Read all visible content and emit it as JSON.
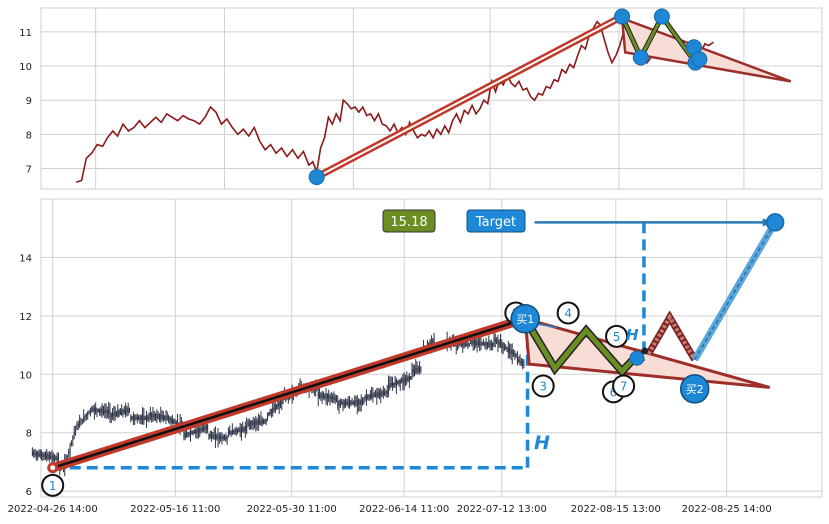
{
  "colors": {
    "price_line": "#8b1a1a",
    "candle": "#2d3447",
    "trend": "#c0392b",
    "wave_fill": "#f8dcd6",
    "wave_stroke": "#9c2f2a",
    "zigzag": "#6b8e23",
    "marker": "#1e88d6",
    "projection": "#5aa7dd",
    "dashed": "#1e88d6",
    "grid": "#d0d0d0",
    "price_box": "#6b8e23",
    "target_box": "#1e88d6"
  },
  "annotations": {
    "price_box": "15.18",
    "target_label": "Target",
    "height_label": "H",
    "height_label_small": "H",
    "buy1": "买1",
    "buy2": "买2",
    "points": [
      {
        "label": "1",
        "x": 1.5,
        "y": 6.2
      },
      {
        "label": "2",
        "x": 60.8,
        "y": 12.1
      },
      {
        "label": "3",
        "x": 64.3,
        "y": 9.6
      },
      {
        "label": "4",
        "x": 67.5,
        "y": 12.1
      },
      {
        "label": "5",
        "x": 73.7,
        "y": 11.3
      },
      {
        "label": "6",
        "x": 73.3,
        "y": 9.4
      },
      {
        "label": "7",
        "x": 74.6,
        "y": 9.6
      }
    ]
  },
  "chart_data": [
    {
      "type": "line",
      "panel": "top",
      "xlim": [
        0,
        100
      ],
      "ylim": [
        6.4,
        11.7
      ],
      "yticks": [
        7,
        8,
        9,
        10,
        11
      ],
      "grid": true,
      "x_gridlines": [
        7,
        23.5,
        40,
        57.5,
        74,
        90
      ],
      "series": [
        {
          "points": [
            [
              4.5,
              6.6
            ],
            [
              5.2,
              6.65
            ],
            [
              5.8,
              7.3
            ],
            [
              6.5,
              7.45
            ],
            [
              7.2,
              7.7
            ],
            [
              7.9,
              7.65
            ],
            [
              8.5,
              7.9
            ],
            [
              9.2,
              8.1
            ],
            [
              9.8,
              7.95
            ],
            [
              10.5,
              8.3
            ],
            [
              11.2,
              8.1
            ],
            [
              11.9,
              8.2
            ],
            [
              12.6,
              8.4
            ],
            [
              13.3,
              8.2
            ],
            [
              14,
              8.35
            ],
            [
              14.7,
              8.5
            ],
            [
              15.4,
              8.35
            ],
            [
              16.1,
              8.6
            ],
            [
              16.8,
              8.5
            ],
            [
              17.5,
              8.4
            ],
            [
              18.2,
              8.55
            ],
            [
              18.9,
              8.45
            ],
            [
              19.6,
              8.4
            ],
            [
              20.3,
              8.3
            ],
            [
              21,
              8.5
            ],
            [
              21.7,
              8.8
            ],
            [
              22.4,
              8.65
            ],
            [
              23.1,
              8.3
            ],
            [
              23.8,
              8.45
            ],
            [
              24.5,
              8.2
            ],
            [
              25.2,
              8.0
            ],
            [
              25.9,
              8.15
            ],
            [
              26.6,
              7.95
            ],
            [
              27.3,
              8.2
            ],
            [
              28,
              7.8
            ],
            [
              28.7,
              7.55
            ],
            [
              29.4,
              7.7
            ],
            [
              30.1,
              7.45
            ],
            [
              30.8,
              7.6
            ],
            [
              31.5,
              7.35
            ],
            [
              32.2,
              7.55
            ],
            [
              32.9,
              7.3
            ],
            [
              33.6,
              7.5
            ],
            [
              34.3,
              7.1
            ],
            [
              34.8,
              7.2
            ],
            [
              35.3,
              6.9
            ],
            [
              35.8,
              7.6
            ],
            [
              36.3,
              7.9
            ],
            [
              36.8,
              8.5
            ],
            [
              37.3,
              8.3
            ],
            [
              37.8,
              8.6
            ],
            [
              38.3,
              8.4
            ],
            [
              38.7,
              9.0
            ],
            [
              39.2,
              8.9
            ],
            [
              39.7,
              8.75
            ],
            [
              40.2,
              8.8
            ],
            [
              40.7,
              8.65
            ],
            [
              41.2,
              8.8
            ],
            [
              41.7,
              8.55
            ],
            [
              42.2,
              8.6
            ],
            [
              42.7,
              8.4
            ],
            [
              43.2,
              8.6
            ],
            [
              43.7,
              8.3
            ],
            [
              44.2,
              8.25
            ],
            [
              44.7,
              8.1
            ],
            [
              45.2,
              8.3
            ],
            [
              45.7,
              8.05
            ],
            [
              46.2,
              8.2
            ],
            [
              46.7,
              8.0
            ],
            [
              47.2,
              8.35
            ],
            [
              47.7,
              8.1
            ],
            [
              48.2,
              7.9
            ],
            [
              48.7,
              8.0
            ],
            [
              49.2,
              7.95
            ],
            [
              49.7,
              8.1
            ],
            [
              50.2,
              7.9
            ],
            [
              50.7,
              8.15
            ],
            [
              51.2,
              8.0
            ],
            [
              51.7,
              8.25
            ],
            [
              52.2,
              8.05
            ],
            [
              52.7,
              8.4
            ],
            [
              53.2,
              8.6
            ],
            [
              53.7,
              8.35
            ],
            [
              54.2,
              8.7
            ],
            [
              54.7,
              8.6
            ],
            [
              55.2,
              8.85
            ],
            [
              55.7,
              8.6
            ],
            [
              56.2,
              8.75
            ],
            [
              56.7,
              9.0
            ],
            [
              57.2,
              8.9
            ],
            [
              57.7,
              9.55
            ],
            [
              58.2,
              9.25
            ],
            [
              58.7,
              9.6
            ],
            [
              59.2,
              9.45
            ],
            [
              59.7,
              9.75
            ],
            [
              60.2,
              9.5
            ],
            [
              60.7,
              9.4
            ],
            [
              61.2,
              9.55
            ],
            [
              61.7,
              9.3
            ],
            [
              62.2,
              9.35
            ],
            [
              62.7,
              9.1
            ],
            [
              63.2,
              9.0
            ],
            [
              63.7,
              9.2
            ],
            [
              64.2,
              9.15
            ],
            [
              64.7,
              9.4
            ],
            [
              65.2,
              9.35
            ],
            [
              65.7,
              9.6
            ],
            [
              66.2,
              9.55
            ],
            [
              66.7,
              9.9
            ],
            [
              67.2,
              9.8
            ],
            [
              67.7,
              10.05
            ],
            [
              68.2,
              9.95
            ],
            [
              68.7,
              10.3
            ],
            [
              69.2,
              10.6
            ],
            [
              69.7,
              10.5
            ],
            [
              70.2,
              10.9
            ],
            [
              70.7,
              11.1
            ],
            [
              71.2,
              11.3
            ],
            [
              71.6,
              11.2
            ],
            [
              72.1,
              10.8
            ],
            [
              72.6,
              10.4
            ],
            [
              73.1,
              10.1
            ],
            [
              73.6,
              10.3
            ],
            [
              74.1,
              10.6
            ],
            [
              74.6,
              11.0
            ],
            [
              75.1,
              11.3
            ],
            [
              75.6,
              11.15
            ],
            [
              76.1,
              10.9
            ],
            [
              76.6,
              10.6
            ],
            [
              77.1,
              10.35
            ],
            [
              77.6,
              10.1
            ],
            [
              78.1,
              10.25
            ],
            [
              78.6,
              10.45
            ],
            [
              79.1,
              10.55
            ],
            [
              79.6,
              10.4
            ],
            [
              80.1,
              10.55
            ],
            [
              80.6,
              10.45
            ],
            [
              81.1,
              10.6
            ],
            [
              81.6,
              10.5
            ],
            [
              82.1,
              10.55
            ],
            [
              82.6,
              10.6
            ],
            [
              83.1,
              10.5
            ],
            [
              83.5,
              10.4
            ],
            [
              84.0,
              10.5
            ],
            [
              84.5,
              10.4
            ],
            [
              85.0,
              10.65
            ],
            [
              85.5,
              10.6
            ],
            [
              86.1,
              10.7
            ]
          ]
        }
      ]
    },
    {
      "type": "candlestick",
      "panel": "bottom",
      "xlim": [
        0,
        100
      ],
      "ylim": [
        5.8,
        16.0
      ],
      "yticks": [
        6,
        8,
        10,
        12,
        14
      ],
      "grid": true,
      "xticks": [
        "2022-04-26 14:00",
        "2022-05-16 11:00",
        "2022-05-30 11:00",
        "2022-06-14 11:00",
        "2022-07-12 13:00",
        "2022-08-15 13:00",
        "2022-08-25 14:00"
      ],
      "xtick_positions": [
        1.5,
        17.2,
        32.1,
        46.5,
        59.0,
        73.6,
        87.8
      ],
      "candle_segments": [
        [
          -1.1,
          2.4,
          7.3,
          7.1
        ],
        [
          2.4,
          3.2,
          6.8,
          6.9
        ],
        [
          3.2,
          4.6,
          7.0,
          8.3
        ],
        [
          4.6,
          6.5,
          8.2,
          8.8
        ],
        [
          6.5,
          9.0,
          8.8,
          8.7
        ],
        [
          9.0,
          11.5,
          8.6,
          8.8
        ],
        [
          11.5,
          14.0,
          8.5,
          8.5
        ],
        [
          14.0,
          16.5,
          8.6,
          8.5
        ],
        [
          16.5,
          18.3,
          8.45,
          8.2
        ],
        [
          18.3,
          21.5,
          7.9,
          8.2
        ],
        [
          21.5,
          24.0,
          7.9,
          7.8
        ],
        [
          24.0,
          26.5,
          8.0,
          8.15
        ],
        [
          26.5,
          29.0,
          8.3,
          8.4
        ],
        [
          29.0,
          31.0,
          8.6,
          9.1
        ],
        [
          31.0,
          33.0,
          9.2,
          9.4
        ],
        [
          33.0,
          35.5,
          9.6,
          9.5
        ],
        [
          35.5,
          38.0,
          9.3,
          9.15
        ],
        [
          38.0,
          41.5,
          9.0,
          9.05
        ],
        [
          41.5,
          44.5,
          9.2,
          9.4
        ],
        [
          44.5,
          47.5,
          9.6,
          9.9
        ],
        [
          47.5,
          48.8,
          10.1,
          10.2
        ],
        [
          48.8,
          50.5,
          10.8,
          11.2
        ],
        [
          52.0,
          55.0,
          11.1,
          11.0
        ],
        [
          55.0,
          58.0,
          11.1,
          11.0
        ],
        [
          58.0,
          61.0,
          11.2,
          10.6
        ],
        [
          61.0,
          62.0,
          10.5,
          10.3
        ]
      ]
    }
  ]
}
